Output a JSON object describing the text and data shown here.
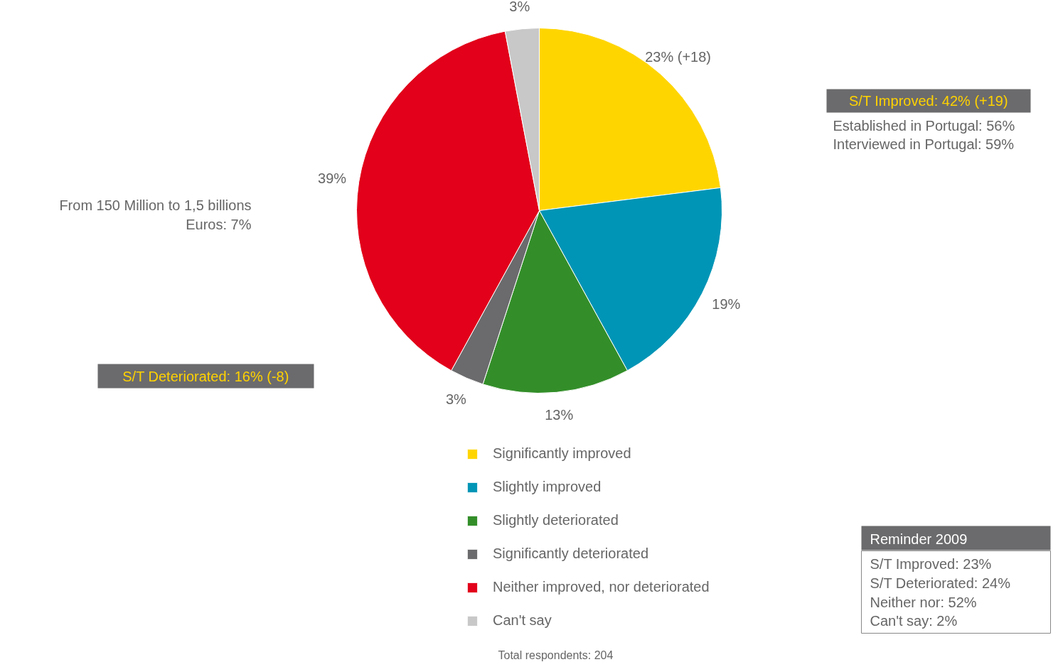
{
  "chart_data": {
    "type": "pie",
    "categories": [
      "Significantly improved",
      "Slightly improved",
      "Slightly deteriorated",
      "Significantly deteriorated",
      "Neither improved, nor deteriorated",
      "Can't say"
    ],
    "values": [
      23,
      19,
      13,
      3,
      39,
      3
    ],
    "colors": [
      "#ffd500",
      "#0095b6",
      "#338e29",
      "#6b6b6d",
      "#e2001a",
      "#c8c8c8"
    ],
    "value_labels": [
      "23% (+18)",
      "19%",
      "13%",
      "3%",
      "39%",
      "3%"
    ],
    "legend": "bottom",
    "annotations": [
      "S/T Improved: 42% (+19)",
      "Established in Portugal: 56%",
      "Interviewed in Portugal: 59%",
      "From 150 Million to 1,5 billions",
      "Euros: 7%",
      "S/T Deteriorated: 16% (-8)",
      "Reminder 2009",
      "S/T Improved: 23%",
      "S/T Deteriorated: 24%",
      "Neither nor: 52%",
      "Can't say: 2%",
      "Total respondents: 204"
    ]
  }
}
